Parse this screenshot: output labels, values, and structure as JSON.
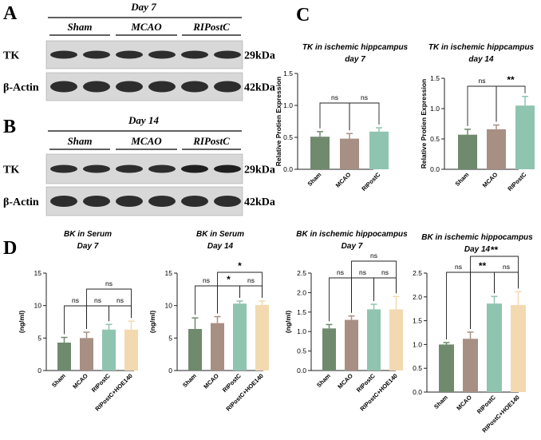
{
  "figure": {
    "panel_labels": [
      "A",
      "B",
      "C",
      "D"
    ],
    "colors": {
      "Sham": "#6f8a6d",
      "MCAO": "#a88f84",
      "RIPostC": "#8fc4b0",
      "RIPostC+HOE140": "#f3d9b0",
      "blot_bg": "#d8d8d8",
      "band": "#1e1e1e"
    }
  },
  "blots": [
    {
      "panel": "A",
      "day_label": "Day 7",
      "groups": [
        "Sham",
        "MCAO",
        "RIPostC"
      ],
      "rows": [
        {
          "protein": "TK",
          "size": "29kDa"
        },
        {
          "protein": "β-Actin",
          "size": "42kDa"
        }
      ]
    },
    {
      "panel": "B",
      "day_label": "Day 14",
      "groups": [
        "Sham",
        "MCAO",
        "RIPostC"
      ],
      "rows": [
        {
          "protein": "TK",
          "size": "29kDa"
        },
        {
          "protein": "β-Actin",
          "size": "42kDa"
        }
      ]
    }
  ],
  "chart_data": [
    {
      "panel": "C",
      "type": "bar",
      "title": [
        "TK in ischemic hippcampus",
        "day 7"
      ],
      "ylabel": "Relative Protien Expression",
      "categories": [
        "Sham",
        "MCAO",
        "RIPostC"
      ],
      "values": [
        0.51,
        0.48,
        0.59
      ],
      "errors": [
        0.08,
        0.08,
        0.06
      ],
      "ylim": [
        0,
        1.5
      ],
      "yticks": [
        0.0,
        0.5,
        1.0,
        1.5
      ],
      "ytick_labels": [
        "0.0",
        "0.5",
        "1.0",
        "1.5"
      ],
      "brackets": [
        {
          "from": 0,
          "to": 1,
          "label": "ns",
          "level": 0
        },
        {
          "from": 1,
          "to": 2,
          "label": "ns",
          "level": 0
        }
      ]
    },
    {
      "panel": "C",
      "type": "bar",
      "title": [
        "TK in ischemic hippcampus",
        "day 14"
      ],
      "ylabel": "Relative Protien Expression",
      "categories": [
        "Sham",
        "MCAO",
        "RIPostC"
      ],
      "values": [
        0.57,
        0.66,
        1.05
      ],
      "errors": [
        0.09,
        0.07,
        0.15
      ],
      "ylim": [
        0,
        1.5
      ],
      "yticks": [
        0.0,
        0.5,
        1.0,
        1.5
      ],
      "ytick_labels": [
        "0.0",
        "0.5",
        "1.0",
        "1.5"
      ],
      "brackets": [
        {
          "from": 0,
          "to": 1,
          "label": "ns",
          "level": 0
        },
        {
          "from": 1,
          "to": 2,
          "label": "**",
          "level": 0
        }
      ]
    },
    {
      "panel": "D",
      "type": "bar",
      "title": [
        "BK in Serum",
        "Day 7"
      ],
      "ylabel": "(ng/ml)",
      "categories": [
        "Sham",
        "MCAO",
        "RIPostC",
        "RIPostC+HOE140"
      ],
      "values": [
        4.3,
        5.0,
        6.3,
        6.3
      ],
      "errors": [
        0.8,
        0.9,
        0.8,
        1.3
      ],
      "ylim": [
        0,
        15
      ],
      "yticks": [
        0,
        5,
        10,
        15
      ],
      "ytick_labels": [
        "0",
        "5",
        "10",
        "15"
      ],
      "brackets": [
        {
          "from": 0,
          "to": 1,
          "label": "ns",
          "level": 0
        },
        {
          "from": 1,
          "to": 2,
          "label": "ns",
          "level": 0
        },
        {
          "from": 2,
          "to": 3,
          "label": "ns",
          "level": 0
        },
        {
          "from": 1,
          "to": 3,
          "label": "ns",
          "level": 1
        }
      ]
    },
    {
      "panel": "D",
      "type": "bar",
      "title": [
        "BK in Serum",
        "Day 14"
      ],
      "ylabel": "(ng/ml)",
      "categories": [
        "Sham",
        "MCAO",
        "RIPostC",
        "RIPostC+HOE140"
      ],
      "values": [
        6.4,
        7.3,
        10.3,
        10.1
      ],
      "errors": [
        1.7,
        1.0,
        0.4,
        0.6
      ],
      "ylim": [
        0,
        15
      ],
      "yticks": [
        0,
        5,
        10,
        15
      ],
      "ytick_labels": [
        "0",
        "5",
        "10",
        "15"
      ],
      "brackets": [
        {
          "from": 0,
          "to": 1,
          "label": "ns",
          "level": 0
        },
        {
          "from": 1,
          "to": 2,
          "label": "*",
          "level": 0
        },
        {
          "from": 2,
          "to": 3,
          "label": "ns",
          "level": 0
        },
        {
          "from": 1,
          "to": 3,
          "label": "*",
          "level": 1
        }
      ]
    },
    {
      "panel": "D",
      "type": "bar",
      "title": [
        "BK in ischemic hippocampus",
        "Day 7"
      ],
      "ylabel": "(ng/ml)",
      "categories": [
        "Sham",
        "MCAO",
        "RIPostC",
        "RIPostC+HOE140"
      ],
      "values": [
        1.08,
        1.3,
        1.57,
        1.57
      ],
      "errors": [
        0.1,
        0.1,
        0.13,
        0.33
      ],
      "ylim": [
        0,
        2.5
      ],
      "yticks": [
        0.0,
        0.5,
        1.0,
        1.5,
        2.0,
        2.5
      ],
      "ytick_labels": [
        "0.0",
        "0.5",
        "1.0",
        "1.5",
        "2.0",
        "2.5"
      ],
      "brackets": [
        {
          "from": 0,
          "to": 1,
          "label": "ns",
          "level": 0
        },
        {
          "from": 1,
          "to": 2,
          "label": "ns",
          "level": 0
        },
        {
          "from": 2,
          "to": 3,
          "label": "ns",
          "level": 0
        },
        {
          "from": 1,
          "to": 3,
          "label": "ns",
          "level": 1
        }
      ]
    },
    {
      "panel": "D",
      "type": "bar",
      "title": [
        "BK in ischemic hippocampus",
        "Day 14"
      ],
      "ylabel": "",
      "categories": [
        "Sham",
        "MCAO",
        "RIPostC",
        "RIPostC+HOE140"
      ],
      "values": [
        1.0,
        1.12,
        1.86,
        1.83
      ],
      "errors": [
        0.04,
        0.14,
        0.15,
        0.28
      ],
      "ylim": [
        0,
        2.5
      ],
      "yticks": [
        0.0,
        0.5,
        1.0,
        1.5,
        2.0,
        2.5
      ],
      "ytick_labels": [
        "0.0",
        "0.5",
        "1.0",
        "1.5",
        "2.0",
        "2.5"
      ],
      "brackets": [
        {
          "from": 0,
          "to": 1,
          "label": "ns",
          "level": 0
        },
        {
          "from": 1,
          "to": 2,
          "label": "**",
          "level": 0
        },
        {
          "from": 2,
          "to": 3,
          "label": "ns",
          "level": 0
        },
        {
          "from": 1,
          "to": 3,
          "label": "**",
          "level": 1
        }
      ]
    }
  ]
}
